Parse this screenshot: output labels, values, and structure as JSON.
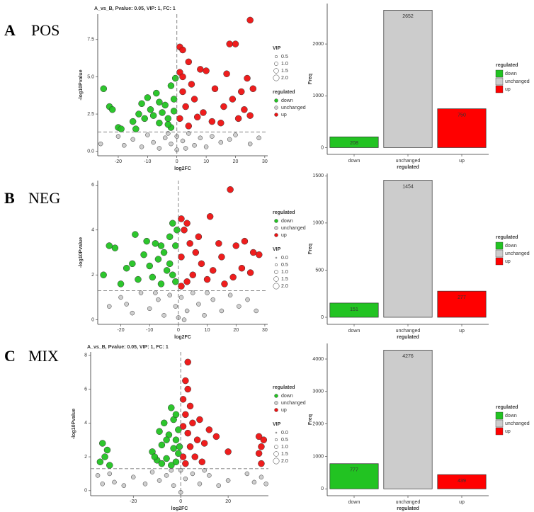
{
  "panels": [
    {
      "letter": "A",
      "name": "POS"
    },
    {
      "letter": "B",
      "name": "NEG"
    },
    {
      "letter": "C",
      "name": "MIX"
    }
  ],
  "chart_data": [
    {
      "type": "scatter",
      "title": "A_vs_B, Pvalue: 0.05, VIP: 1, FC: 1",
      "x_label": "log2FC",
      "y_label": "-log10Pvalue",
      "xlim": [
        -27,
        31
      ],
      "ylim": [
        -0.3,
        9.2
      ],
      "xticks": [
        -20,
        -10,
        0,
        10,
        20,
        30
      ],
      "yticks": [
        {
          "value": 0,
          "label": "0.0"
        },
        2.5,
        {
          "value": 5,
          "label": "5.0"
        },
        7.5
      ],
      "thresholds": {
        "x": 0,
        "y": 1.3
      },
      "legend_title": "regulated",
      "size_legend": {
        "title": "VIP",
        "values": [
          0.5,
          {
            "value": 1,
            "label": "1.0"
          },
          1.5,
          {
            "value": 2,
            "label": "2.0"
          }
        ]
      },
      "series": [
        {
          "name": "down",
          "color": "#22c322",
          "x": [
            -25,
            -23,
            -22,
            -20,
            -19,
            -15,
            -13,
            -12,
            -11,
            -10,
            -9,
            -8,
            -7,
            -6,
            -5,
            -4,
            -3,
            -2,
            -2,
            -1,
            -1,
            -6,
            -14,
            -3,
            -0.5
          ],
          "values": [
            4.2,
            3.0,
            2.8,
            1.6,
            1.5,
            2.0,
            2.5,
            3.2,
            2.2,
            3.6,
            2.8,
            2.4,
            3.9,
            1.9,
            2.6,
            3.1,
            2.2,
            4.4,
            1.6,
            3.5,
            2.7,
            3.3,
            1.5,
            1.8,
            4.9
          ]
        },
        {
          "name": "unchanged",
          "color": "#cccccc",
          "x": [
            -26,
            -20,
            -15,
            -12,
            -10,
            -8,
            -6,
            -4,
            -2,
            0,
            0,
            2,
            4,
            6,
            8,
            10,
            12,
            15,
            18,
            20,
            25,
            28,
            -3,
            3,
            -18
          ],
          "values": [
            0.5,
            1.0,
            0.8,
            0.3,
            1.1,
            0.6,
            0.2,
            0.9,
            0.5,
            1.0,
            0.1,
            0.7,
            1.2,
            0.4,
            0.9,
            0.3,
            1.0,
            0.6,
            0.8,
            1.1,
            0.5,
            0.9,
            1.2,
            0.2,
            0.4
          ]
        },
        {
          "name": "up",
          "color": "#ee1111",
          "x": [
            25,
            20,
            18,
            1,
            2,
            4,
            1,
            2,
            8,
            10,
            17,
            24,
            5,
            13,
            19,
            22,
            26,
            23,
            25,
            21,
            3,
            6,
            9,
            12,
            15,
            1,
            2,
            4,
            7,
            16
          ],
          "values": [
            8.8,
            7.2,
            7.2,
            7.0,
            6.8,
            6.0,
            5.3,
            5.0,
            5.5,
            5.4,
            5.2,
            4.9,
            4.5,
            4.2,
            3.5,
            4.0,
            4.2,
            2.8,
            2.4,
            2.2,
            3.0,
            3.5,
            2.6,
            2.0,
            1.9,
            2.2,
            4.0,
            1.7,
            2.3,
            3.0
          ]
        }
      ]
    },
    {
      "type": "bar",
      "x_label": "regulated",
      "y_label": "Freq",
      "categories": [
        "down",
        "unchanged",
        "up"
      ],
      "values": [
        208,
        2652,
        750
      ],
      "colors": [
        "#22c322",
        "#cccccc",
        "#ff0000"
      ],
      "ylim": [
        -130,
        2780
      ],
      "yticks": [
        0,
        1000,
        2000
      ],
      "legend_title": "regulated"
    },
    {
      "type": "scatter",
      "x_label": "log2FC",
      "y_label": "-log10Pvalue",
      "xlim": [
        -28,
        31
      ],
      "ylim": [
        -0.2,
        6.2
      ],
      "xticks": [
        -20,
        -10,
        0,
        10,
        20,
        30
      ],
      "yticks": [
        0,
        2,
        4,
        6
      ],
      "thresholds": {
        "x": 0,
        "y": 1.3
      },
      "legend_title": "regulated",
      "size_legend": {
        "title": "VIP",
        "values": [
          {
            "value": 0,
            "label": "0.0"
          },
          0.5,
          {
            "value": 1,
            "label": "1.0"
          },
          1.5,
          {
            "value": 2,
            "label": "2.0"
          }
        ]
      },
      "series": [
        {
          "name": "down",
          "color": "#22c322",
          "x": [
            -26,
            -22,
            -20,
            -18,
            -15,
            -14,
            -12,
            -10,
            -9,
            -8,
            -7,
            -6,
            -5,
            -4,
            -3,
            -2,
            -2,
            -1,
            -1,
            -3,
            -11,
            -16,
            -24,
            -6,
            -0.5
          ],
          "values": [
            2.0,
            3.2,
            1.6,
            2.3,
            3.8,
            1.8,
            2.9,
            2.4,
            1.9,
            3.4,
            2.7,
            1.6,
            3.0,
            2.2,
            3.7,
            4.3,
            2.0,
            3.3,
            1.7,
            2.5,
            3.5,
            2.5,
            3.3,
            3.3,
            4.0
          ]
        },
        {
          "name": "unchanged",
          "color": "#cccccc",
          "x": [
            -24,
            -20,
            -16,
            -13,
            -10,
            -7,
            -5,
            -3,
            -1,
            0,
            1,
            3,
            5,
            7,
            9,
            12,
            15,
            18,
            21,
            24,
            27,
            2,
            -8,
            10,
            -18
          ],
          "values": [
            0.6,
            1.0,
            0.3,
            1.2,
            0.5,
            0.9,
            0.2,
            1.1,
            0.6,
            0.1,
            1.0,
            0.4,
            1.2,
            0.7,
            0.2,
            0.9,
            0.4,
            1.1,
            0.6,
            0.9,
            0.4,
            0.0,
            1.2,
            1.2,
            0.7
          ]
        },
        {
          "name": "up",
          "color": "#ee1111",
          "x": [
            18,
            1,
            3,
            11,
            2,
            7,
            23,
            26,
            28,
            20,
            15,
            12,
            8,
            5,
            3,
            1,
            16,
            19,
            22,
            10,
            6,
            14,
            25,
            4,
            1
          ],
          "values": [
            5.8,
            4.5,
            4.3,
            4.6,
            4.0,
            3.7,
            3.5,
            3.0,
            2.9,
            3.3,
            2.8,
            2.2,
            2.5,
            2.0,
            1.7,
            2.8,
            1.6,
            1.9,
            2.3,
            1.8,
            3.0,
            3.4,
            2.1,
            3.4,
            1.5
          ]
        }
      ]
    },
    {
      "type": "bar",
      "x_label": "regulated",
      "y_label": "Freq",
      "categories": [
        "down",
        "unchanged",
        "up"
      ],
      "values": [
        151,
        1454,
        277
      ],
      "colors": [
        "#22c322",
        "#cccccc",
        "#ff0000"
      ],
      "ylim": [
        -75,
        1525
      ],
      "yticks": [
        0,
        500,
        1000,
        1500
      ],
      "legend_title": "regulated"
    },
    {
      "type": "scatter",
      "title": "A_vs_B, Pvalue: 0.05, VIP: 1, FC: 1",
      "x_label": "log2FC",
      "y_label": "-log10Pvalue",
      "xlim": [
        -38,
        37
      ],
      "ylim": [
        -0.3,
        8.2
      ],
      "xticks": [
        -20,
        0,
        20
      ],
      "yticks": [
        0,
        2,
        4,
        6,
        8
      ],
      "thresholds": {
        "x": 0,
        "y": 1.3
      },
      "legend_title": "regulated",
      "size_legend": {
        "title": "VIP",
        "values": [
          {
            "value": 0,
            "label": "0.0"
          },
          0.5,
          {
            "value": 1,
            "label": "1.0"
          },
          1.5,
          {
            "value": 2,
            "label": "2.0"
          }
        ]
      },
      "series": [
        {
          "name": "down",
          "color": "#22c322",
          "x": [
            -33,
            -32,
            -31,
            -34,
            -30,
            -12,
            -10,
            -9,
            -8,
            -7,
            -6,
            -5,
            -4,
            -3,
            -3,
            -2,
            -2,
            -1,
            -1,
            -6,
            -11,
            -4,
            -8,
            -0.5,
            -2
          ],
          "values": [
            2.8,
            2.0,
            2.4,
            1.7,
            1.5,
            2.3,
            1.8,
            3.5,
            2.7,
            4.0,
            1.9,
            3.3,
            4.9,
            2.5,
            4.2,
            3.0,
            1.7,
            3.6,
            2.2,
            3.0,
            2.0,
            1.5,
            1.6,
            2.6,
            4.5
          ]
        },
        {
          "name": "unchanged",
          "color": "#cccccc",
          "x": [
            -35,
            -33,
            -30,
            -28,
            -24,
            -20,
            -15,
            -12,
            -9,
            -6,
            -3,
            0,
            0,
            2,
            5,
            8,
            12,
            16,
            20,
            28,
            31,
            34,
            36,
            -4,
            10
          ],
          "values": [
            0.9,
            0.4,
            1.0,
            0.5,
            0.3,
            0.8,
            0.4,
            1.1,
            0.6,
            0.9,
            0.3,
            1.2,
            -0.1,
            0.7,
            1.0,
            0.4,
            0.9,
            0.3,
            0.6,
            1.0,
            0.5,
            0.8,
            0.4,
            1.2,
            1.2
          ]
        },
        {
          "name": "up",
          "color": "#ee1111",
          "x": [
            3,
            2,
            3,
            1,
            4,
            2,
            8,
            5,
            15,
            12,
            33,
            35,
            34,
            33,
            34,
            20,
            10,
            7,
            3,
            1,
            4,
            2,
            6,
            9,
            1
          ],
          "values": [
            7.6,
            6.5,
            6.0,
            5.4,
            5.0,
            4.5,
            4.2,
            4.0,
            3.2,
            3.6,
            3.2,
            3.0,
            2.6,
            2.2,
            1.6,
            2.3,
            2.8,
            3.0,
            3.4,
            2.0,
            2.6,
            1.6,
            2.0,
            1.7,
            3.8
          ]
        }
      ]
    },
    {
      "type": "bar",
      "x_label": "regulated",
      "y_label": "Freq",
      "categories": [
        "down",
        "unchanged",
        "up"
      ],
      "values": [
        777,
        4276,
        439
      ],
      "colors": [
        "#22c322",
        "#cccccc",
        "#ff0000"
      ],
      "ylim": [
        -210,
        4480
      ],
      "yticks": [
        0,
        1000,
        2000,
        3000,
        4000
      ],
      "legend_title": "regulated"
    }
  ]
}
